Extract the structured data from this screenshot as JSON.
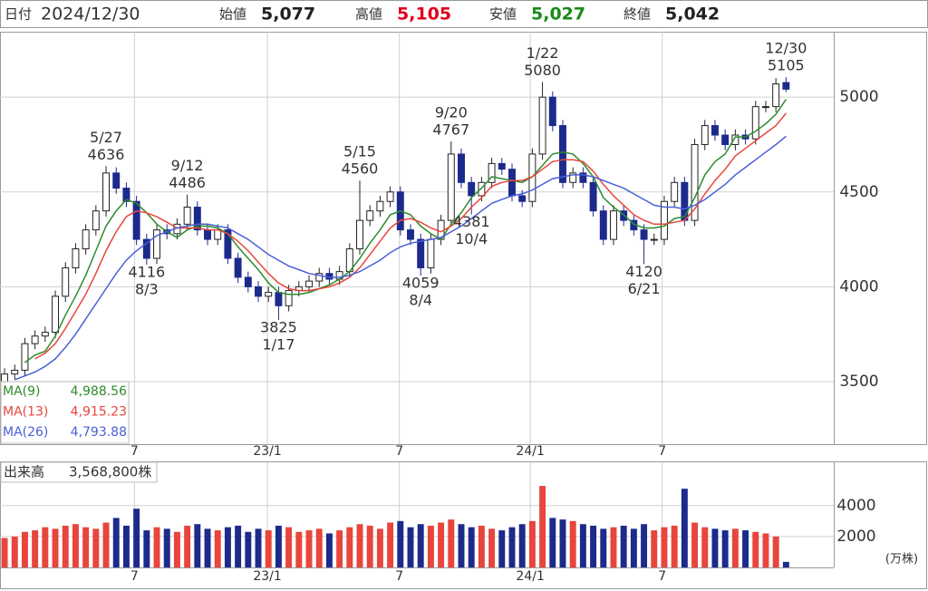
{
  "header": {
    "date_label": "日付",
    "date": "2024/12/30",
    "items": [
      {
        "name": "始値",
        "text": "5,077",
        "color": "#222222"
      },
      {
        "name": "高値",
        "text": "5,105",
        "color": "#e0001b"
      },
      {
        "name": "安値",
        "text": "5,027",
        "color": "#1a8a1a"
      },
      {
        "name": "終値",
        "text": "5,042",
        "color": "#222222"
      }
    ]
  },
  "chart_data": [
    {
      "type": "candlestick",
      "up_color": "#ffffff",
      "up_stroke": "#222222",
      "down_color": "#1c2a8c",
      "xlim": [
        -0.45,
        81.7
      ],
      "ylim": [
        3170,
        5345
      ],
      "yticks": [
        3500,
        4000,
        4500,
        5000
      ],
      "grid": true,
      "xticks": [
        {
          "value": 12.8,
          "label": "7"
        },
        {
          "value": 25.9,
          "label": "23/1"
        },
        {
          "value": 38.9,
          "label": "7"
        },
        {
          "value": 51.8,
          "label": "24/1"
        },
        {
          "value": 64.8,
          "label": "7"
        }
      ],
      "open": [
        3500,
        3540,
        3560,
        3700,
        3740,
        3760,
        3950,
        4100,
        4200,
        4300,
        4400,
        4600,
        4520,
        4450,
        4250,
        4150,
        4300,
        4280,
        4330,
        4420,
        4300,
        4250,
        4300,
        4150,
        4050,
        4000,
        3950,
        3970,
        3900,
        3980,
        4000,
        4030,
        4070,
        4040,
        4080,
        4200,
        4350,
        4400,
        4450,
        4500,
        4300,
        4250,
        4100,
        4250,
        4350,
        4700,
        4550,
        4480,
        4550,
        4650,
        4620,
        4480,
        4450,
        4700,
        5000,
        4850,
        4550,
        4600,
        4550,
        4400,
        4250,
        4400,
        4350,
        4300,
        4250,
        4250,
        4450,
        4550,
        4350,
        4750,
        4850,
        4800,
        4750,
        4800,
        4780,
        4950,
        4950,
        5077
      ],
      "high": [
        3570,
        3590,
        3730,
        3770,
        3790,
        3980,
        4130,
        4230,
        4330,
        4430,
        4636,
        4630,
        4550,
        4480,
        4280,
        4330,
        4330,
        4360,
        4486,
        4450,
        4330,
        4330,
        4330,
        4180,
        4080,
        4030,
        4000,
        4000,
        4010,
        4030,
        4060,
        4100,
        4100,
        4110,
        4230,
        4560,
        4430,
        4480,
        4530,
        4530,
        4330,
        4280,
        4280,
        4380,
        4767,
        4730,
        4580,
        4580,
        4680,
        4680,
        4650,
        4510,
        4730,
        5080,
        5030,
        4880,
        4630,
        4630,
        4580,
        4430,
        4430,
        4430,
        4380,
        4330,
        4280,
        4480,
        4580,
        4580,
        4780,
        4880,
        4880,
        4830,
        4830,
        4830,
        4980,
        4980,
        5100,
        5105
      ],
      "low": [
        3470,
        3510,
        3530,
        3670,
        3710,
        3730,
        3920,
        4070,
        4170,
        4270,
        4370,
        4490,
        4420,
        4220,
        4116,
        4120,
        4250,
        4250,
        4300,
        4270,
        4220,
        4220,
        4120,
        4020,
        3970,
        3920,
        3920,
        3825,
        3870,
        3950,
        3970,
        4000,
        4010,
        4010,
        4050,
        4170,
        4320,
        4370,
        4420,
        4270,
        4220,
        4059,
        4070,
        4220,
        4320,
        4520,
        4381,
        4450,
        4520,
        4590,
        4450,
        4420,
        4420,
        4670,
        4820,
        4520,
        4520,
        4520,
        4370,
        4220,
        4220,
        4320,
        4270,
        4120,
        4220,
        4220,
        4420,
        4320,
        4320,
        4720,
        4770,
        4720,
        4720,
        4750,
        4750,
        4920,
        4920,
        5027
      ],
      "close": [
        3540,
        3560,
        3700,
        3740,
        3760,
        3950,
        4100,
        4200,
        4300,
        4400,
        4600,
        4520,
        4450,
        4250,
        4150,
        4300,
        4280,
        4330,
        4420,
        4300,
        4250,
        4300,
        4150,
        4050,
        4000,
        3950,
        3970,
        3900,
        3980,
        4000,
        4030,
        4070,
        4040,
        4080,
        4200,
        4350,
        4400,
        4450,
        4500,
        4300,
        4250,
        4100,
        4250,
        4350,
        4700,
        4550,
        4480,
        4550,
        4650,
        4620,
        4480,
        4450,
        4700,
        5000,
        4850,
        4550,
        4600,
        4550,
        4400,
        4250,
        4400,
        4350,
        4300,
        4250,
        4250,
        4450,
        4550,
        4350,
        4750,
        4850,
        4800,
        4750,
        4800,
        4780,
        4950,
        4950,
        5070,
        5042
      ],
      "ma": [
        {
          "name": "MA(9)",
          "color": "#2e8b2e",
          "last_label": "4,988.56",
          "values": [
            null,
            null,
            3600,
            3640,
            3660,
            3740,
            3850,
            3950,
            4060,
            4190,
            4320,
            4400,
            4460,
            4440,
            4390,
            4330,
            4290,
            4260,
            4300,
            4320,
            4320,
            4310,
            4280,
            4210,
            4150,
            4090,
            4020,
            3970,
            3960,
            3960,
            3970,
            3990,
            4010,
            4040,
            4080,
            4150,
            4230,
            4300,
            4380,
            4400,
            4380,
            4320,
            4280,
            4250,
            4330,
            4390,
            4470,
            4520,
            4580,
            4570,
            4560,
            4550,
            4580,
            4640,
            4700,
            4710,
            4700,
            4650,
            4580,
            4470,
            4420,
            4380,
            4330,
            4310,
            4310,
            4320,
            4360,
            4370,
            4470,
            4590,
            4660,
            4700,
            4790,
            4790,
            4820,
            4860,
            4910,
            4988.56
          ]
        },
        {
          "name": "MA(13)",
          "color": "#e8453c",
          "last_label": "4,915.23",
          "values": [
            null,
            null,
            null,
            3620,
            3650,
            3700,
            3780,
            3870,
            3960,
            4070,
            4190,
            4290,
            4370,
            4400,
            4390,
            4370,
            4340,
            4310,
            4310,
            4310,
            4300,
            4300,
            4280,
            4240,
            4190,
            4130,
            4070,
            4020,
            3990,
            3980,
            3980,
            3990,
            4000,
            4020,
            4050,
            4100,
            4170,
            4240,
            4310,
            4350,
            4360,
            4340,
            4310,
            4290,
            4320,
            4360,
            4420,
            4470,
            4530,
            4550,
            4560,
            4560,
            4580,
            4620,
            4660,
            4670,
            4670,
            4660,
            4610,
            4540,
            4480,
            4430,
            4380,
            4350,
            4330,
            4330,
            4340,
            4350,
            4410,
            4490,
            4560,
            4620,
            4690,
            4730,
            4770,
            4810,
            4850,
            4915.23
          ]
        },
        {
          "name": "MA(26)",
          "color": "#4a5fd8",
          "last_label": "4,793.88",
          "values": [
            null,
            3510,
            3530,
            3550,
            3580,
            3620,
            3680,
            3750,
            3830,
            3910,
            3990,
            4070,
            4140,
            4190,
            4230,
            4270,
            4290,
            4310,
            4320,
            4330,
            4330,
            4320,
            4310,
            4280,
            4250,
            4210,
            4170,
            4140,
            4110,
            4090,
            4070,
            4060,
            4050,
            4050,
            4060,
            4080,
            4110,
            4140,
            4180,
            4210,
            4230,
            4240,
            4250,
            4260,
            4290,
            4320,
            4360,
            4400,
            4440,
            4460,
            4480,
            4490,
            4510,
            4540,
            4570,
            4580,
            4590,
            4590,
            4580,
            4560,
            4540,
            4520,
            4490,
            4460,
            4430,
            4420,
            4420,
            4410,
            4430,
            4460,
            4500,
            4540,
            4590,
            4630,
            4670,
            4710,
            4750,
            4793.88
          ]
        }
      ],
      "annotations": [
        {
          "x": 10,
          "value": 4636,
          "date": "5/27",
          "pos": "above"
        },
        {
          "x": 18,
          "value": 4486,
          "date": "9/12",
          "pos": "above"
        },
        {
          "x": 14,
          "value": 4116,
          "date": "8/3",
          "pos": "below"
        },
        {
          "x": 27,
          "value": 3825,
          "date": "1/17",
          "pos": "below"
        },
        {
          "x": 35,
          "value": 4560,
          "date": "5/15",
          "pos": "above"
        },
        {
          "x": 44,
          "value": 4767,
          "date": "9/20",
          "pos": "above"
        },
        {
          "x": 41,
          "value": 4059,
          "date": "8/4",
          "pos": "below"
        },
        {
          "x": 46,
          "value": 4381,
          "date": "10/4",
          "pos": "below"
        },
        {
          "x": 53,
          "value": 5080,
          "date": "1/22",
          "pos": "above"
        },
        {
          "x": 63,
          "value": 4120,
          "date": "6/21",
          "pos": "below"
        },
        {
          "x": 77,
          "value": 5105,
          "date": "12/30",
          "pos": "above"
        }
      ]
    },
    {
      "type": "bar",
      "title": "出来高",
      "subtitle": "3,568,800株",
      "unit": "(万株)",
      "up_color": "#e8453c",
      "down_color": "#1c2a8c",
      "ylim": [
        0,
        6800
      ],
      "yticks": [
        2000,
        4000
      ],
      "values": [
        1900,
        2000,
        2300,
        2400,
        2600,
        2500,
        2700,
        2800,
        2600,
        2500,
        2900,
        3200,
        2700,
        3800,
        2400,
        2600,
        2500,
        2300,
        2700,
        2800,
        2500,
        2400,
        2600,
        2700,
        2300,
        2500,
        2400,
        2700,
        2600,
        2300,
        2400,
        2500,
        2200,
        2400,
        2600,
        2800,
        2700,
        2500,
        2900,
        3000,
        2600,
        2800,
        2700,
        2900,
        3100,
        2800,
        2600,
        2700,
        2500,
        2400,
        2600,
        2800,
        3000,
        5270,
        3200,
        3100,
        3000,
        2800,
        2700,
        2500,
        2600,
        2700,
        2500,
        2800,
        2400,
        2600,
        2700,
        5090,
        2900,
        2600,
        2500,
        2400,
        2500,
        2400,
        2300,
        2200,
        2000,
        357
      ]
    }
  ]
}
